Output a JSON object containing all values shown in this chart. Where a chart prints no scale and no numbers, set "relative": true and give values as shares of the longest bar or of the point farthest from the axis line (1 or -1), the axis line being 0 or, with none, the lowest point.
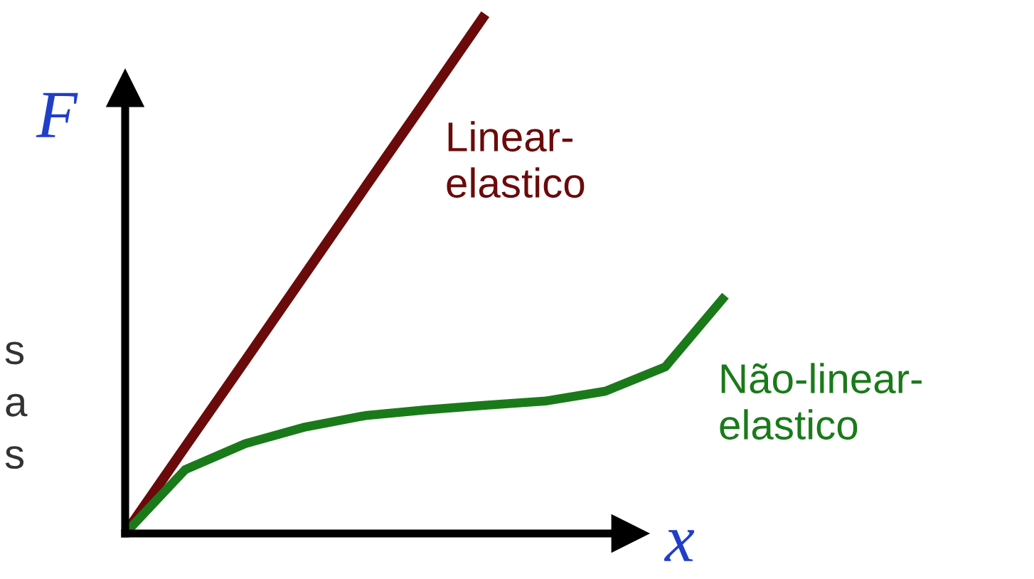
{
  "chart_data": {
    "type": "line",
    "relative": true,
    "xlabel": "x",
    "ylabel": "F",
    "legend": false,
    "marker": "none",
    "line_style": "solid",
    "categories": [
      null,
      null,
      null,
      null,
      null,
      null,
      null,
      null,
      null,
      null,
      null
    ],
    "series": [
      {
        "name": "Linear-\nelastico",
        "color": "#6b0a0a",
        "values": [
          0,
          0.167,
          0.333,
          0.5,
          0.667,
          0.833,
          1,
          null,
          null,
          null,
          null
        ]
      },
      {
        "name": "Não-linear-\nelastico",
        "color": "#1a7a1a",
        "values": [
          0,
          0.123,
          0.173,
          0.205,
          0.227,
          0.238,
          0.247,
          0.255,
          0.274,
          0.321,
          0.458
        ]
      }
    ],
    "annotations": [
      "s\na\ns"
    ]
  }
}
